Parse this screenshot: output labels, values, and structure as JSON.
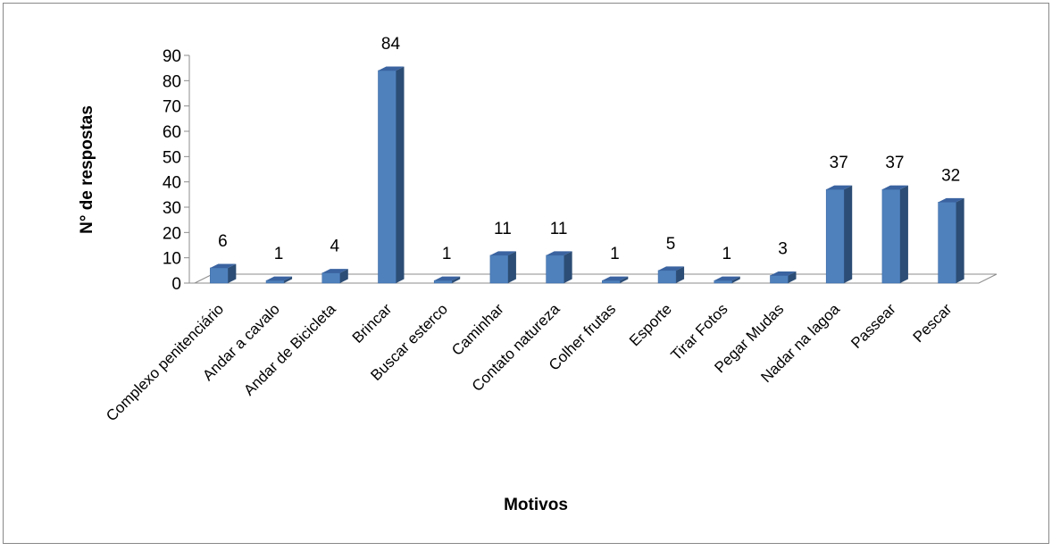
{
  "chart_data": {
    "type": "bar",
    "title": "",
    "xlabel": "Motivos",
    "ylabel": "N° de respostas",
    "ylim": [
      0,
      90
    ],
    "yticks": [
      0,
      10,
      20,
      30,
      40,
      50,
      60,
      70,
      80,
      90
    ],
    "grid": false,
    "legend": "none",
    "style": "3d-column",
    "categories": [
      "Complexo penitenciário",
      "Andar a cavalo",
      "Andar de Bicicleta",
      "Brincar",
      "Buscar esterco",
      "Caminhar",
      "Contato natureza",
      "Colher frutas",
      "Esporte",
      "Tirar Fotos",
      "Pegar Mudas",
      "Nadar na lagoa",
      "Passear",
      "Pescar"
    ],
    "values": [
      6,
      1,
      4,
      84,
      1,
      11,
      11,
      1,
      5,
      1,
      3,
      37,
      37,
      32
    ],
    "colors": {
      "bar_front": "#4f81bd",
      "bar_side": "#2c4d75",
      "bar_top": "#3a63a0",
      "axis": "#8c8c8c",
      "border": "#888888"
    }
  }
}
